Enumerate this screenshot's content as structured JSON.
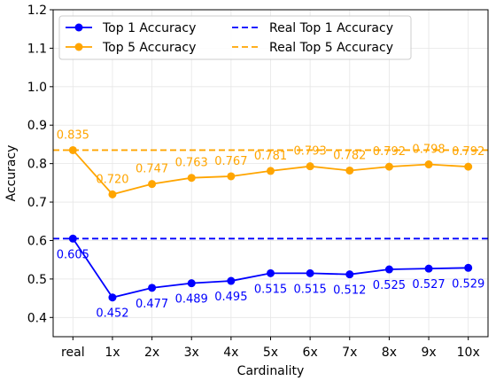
{
  "chart_data": {
    "type": "line",
    "xlabel": "Cardinality",
    "ylabel": "Accuracy",
    "categories": [
      "real",
      "1x",
      "2x",
      "3x",
      "4x",
      "5x",
      "6x",
      "7x",
      "8x",
      "9x",
      "10x"
    ],
    "ylim": [
      0.35,
      1.2
    ],
    "yticks": [
      0.4,
      0.5,
      0.6,
      0.7,
      0.8,
      0.9,
      1.0,
      1.1,
      1.2
    ],
    "ytick_labels": [
      "0.4",
      "0.5",
      "0.6",
      "0.7",
      "0.8",
      "0.9",
      "1.0",
      "1.1",
      "1.2"
    ],
    "grid": true,
    "legend_position": "top-left",
    "series": [
      {
        "name": "Top 1 Accuracy",
        "color": "#0000ff",
        "values": [
          0.605,
          0.452,
          0.477,
          0.489,
          0.495,
          0.515,
          0.515,
          0.512,
          0.525,
          0.527,
          0.529
        ],
        "labels": [
          "0.605",
          "0.452",
          "0.477",
          "0.489",
          "0.495",
          "0.515",
          "0.515",
          "0.512",
          "0.525",
          "0.527",
          "0.529"
        ],
        "label_side": "below"
      },
      {
        "name": "Top 5 Accuracy",
        "color": "#ffa500",
        "values": [
          0.835,
          0.72,
          0.747,
          0.763,
          0.767,
          0.781,
          0.793,
          0.782,
          0.792,
          0.798,
          0.792
        ],
        "labels": [
          "0.835",
          "0.720",
          "0.747",
          "0.763",
          "0.767",
          "0.781",
          "0.793",
          "0.782",
          "0.792",
          "0.798",
          "0.792"
        ],
        "label_side": "above"
      }
    ],
    "reference_lines": [
      {
        "name": "Real Top 1 Accuracy",
        "value": 0.605,
        "color": "#0000ff",
        "style": "dashed"
      },
      {
        "name": "Real Top 5 Accuracy",
        "value": 0.835,
        "color": "#ffa500",
        "style": "dashed"
      }
    ]
  }
}
